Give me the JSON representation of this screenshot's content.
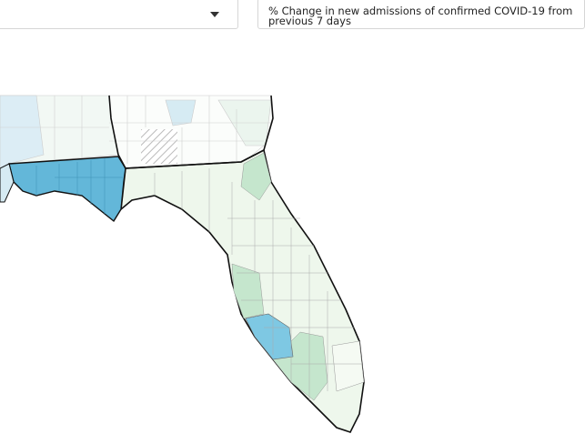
{
  "dropdown": {
    "label": "% Change in new admissions of confirmed COVID-19 from previous 7 days"
  }
}
